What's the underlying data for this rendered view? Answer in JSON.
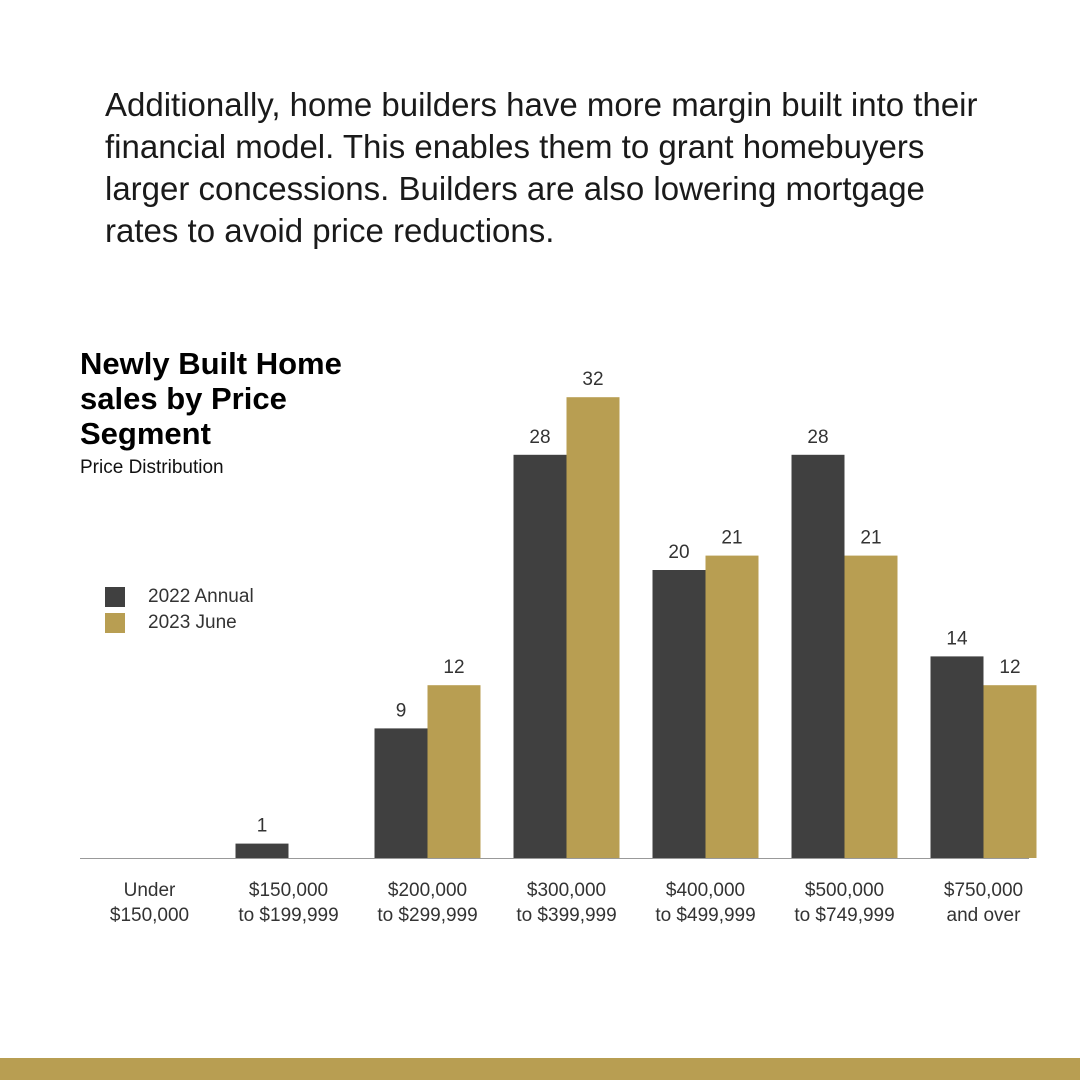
{
  "intro_text": "Additionally, home builders have more margin built into their financial model. This enables them to grant homebuyers larger concessions. Builders are also lowering mortgage rates to avoid price reductions.",
  "colors": {
    "series_2022": "#404040",
    "series_2023": "#b89e52",
    "footer": "#b89e52",
    "baseline": "#999999",
    "label": "#333333"
  },
  "chart_data": {
    "type": "bar",
    "title": "Newly Built Home sales by Price Segment",
    "subtitle": "Price Distribution",
    "legend_placement": "left",
    "grid": false,
    "ylim": [
      0,
      34
    ],
    "categories": [
      [
        "Under",
        "$150,000"
      ],
      [
        "$150,000",
        "to $199,999"
      ],
      [
        "$200,000",
        "to $299,999"
      ],
      [
        "$300,000",
        "to $399,999"
      ],
      [
        "$400,000",
        "to $499,999"
      ],
      [
        "$500,000",
        "to $749,999"
      ],
      [
        "$750,000",
        "and over"
      ]
    ],
    "series": [
      {
        "name": "2022 Annual",
        "values": [
          0,
          1,
          9,
          28,
          20,
          28,
          14
        ]
      },
      {
        "name": "2023 June",
        "values": [
          0,
          0,
          12,
          32,
          21,
          21,
          12
        ]
      }
    ]
  }
}
